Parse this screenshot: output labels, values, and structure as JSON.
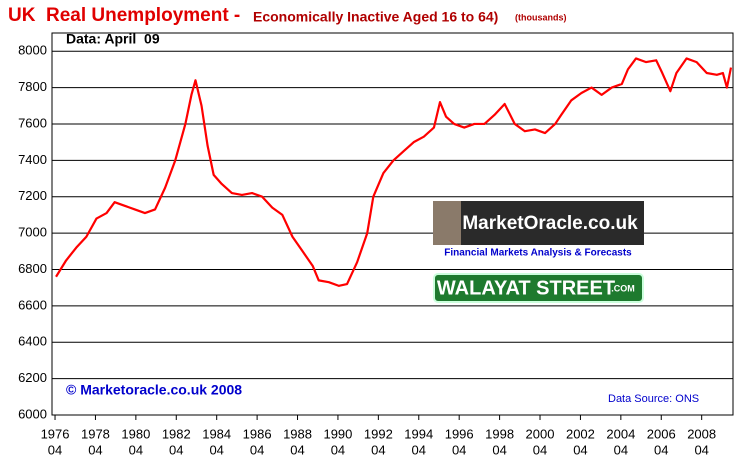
{
  "chart_data": {
    "type": "line",
    "title": "UK  Real Unemployment - ",
    "subtitle": "Economically Inactive Aged 16 to 64)",
    "units": "(thousands)",
    "annotations": [
      "Data: April  09",
      "© Marketoracle.co.uk 2008",
      "Data Source: ONS"
    ],
    "logos": [
      "MarketOracle.co.uk",
      "Financial Markets Analysis & Forecasts",
      "WALAYAT STREET",
      ".COM"
    ],
    "xlim": [
      1976.1,
      2009.8
    ],
    "ylim": [
      6000,
      8100
    ],
    "yticks": [
      6000,
      6200,
      6400,
      6600,
      6800,
      7000,
      7200,
      7400,
      7600,
      7800,
      8000
    ],
    "xticks": [
      {
        "value": 1976.25,
        "label": "1976"
      },
      {
        "value": 1978.25,
        "label": "1978"
      },
      {
        "value": 1980.25,
        "label": "1980"
      },
      {
        "value": 1982.25,
        "label": "1982"
      },
      {
        "value": 1984.25,
        "label": "1984"
      },
      {
        "value": 1986.25,
        "label": "1986"
      },
      {
        "value": 1988.25,
        "label": "1988"
      },
      {
        "value": 1990.25,
        "label": "1990"
      },
      {
        "value": 1992.25,
        "label": "1992"
      },
      {
        "value": 1994.25,
        "label": "1994"
      },
      {
        "value": 1996.25,
        "label": "1996"
      },
      {
        "value": 1998.25,
        "label": "1998"
      },
      {
        "value": 2000.25,
        "label": "2000"
      },
      {
        "value": 2002.25,
        "label": "2002"
      },
      {
        "value": 2004.25,
        "label": "2004"
      },
      {
        "value": 2006.25,
        "label": "2006"
      },
      {
        "value": 2008.25,
        "label": "2008"
      }
    ],
    "xtick_sublabels": [
      "04",
      "04",
      "04",
      "04",
      "04",
      "04",
      "04",
      "04",
      "04",
      "04",
      "04",
      "04",
      "04",
      "04",
      "04",
      "04",
      "04"
    ],
    "grid": true,
    "series": [
      {
        "name": "Economically Inactive",
        "color": "#ff0000",
        "x": [
          1976.3,
          1976.8,
          1977.3,
          1977.8,
          1978.3,
          1978.8,
          1979.2,
          1979.7,
          1980.2,
          1980.7,
          1981.2,
          1981.7,
          1982.2,
          1982.7,
          1983.0,
          1983.2,
          1983.5,
          1983.8,
          1984.1,
          1984.5,
          1985.0,
          1985.5,
          1986.0,
          1986.5,
          1987.0,
          1987.5,
          1988.0,
          1988.5,
          1989.0,
          1989.3,
          1989.8,
          1990.3,
          1990.7,
          1991.2,
          1991.7,
          1992.0,
          1992.5,
          1993.0,
          1993.5,
          1994.0,
          1994.5,
          1995.0,
          1995.3,
          1995.6,
          1996.0,
          1996.5,
          1997.0,
          1997.5,
          1998.0,
          1998.5,
          1999.0,
          1999.5,
          2000.0,
          2000.5,
          2001.0,
          2001.3,
          2001.8,
          2002.3,
          2002.8,
          2003.3,
          2003.8,
          2004.3,
          2004.6,
          2005.0,
          2005.5,
          2006.0,
          2006.3,
          2006.7,
          2007.0,
          2007.5,
          2008.0,
          2008.5,
          2009.0,
          2009.3,
          2009.5,
          2009.7
        ],
        "values": [
          6760,
          6850,
          6920,
          6980,
          7080,
          7110,
          7170,
          7150,
          7130,
          7110,
          7130,
          7250,
          7400,
          7600,
          7760,
          7840,
          7700,
          7480,
          7320,
          7270,
          7220,
          7210,
          7220,
          7200,
          7140,
          7100,
          6980,
          6900,
          6820,
          6740,
          6730,
          6710,
          6720,
          6840,
          7000,
          7200,
          7330,
          7400,
          7450,
          7500,
          7530,
          7580,
          7720,
          7640,
          7600,
          7580,
          7600,
          7600,
          7650,
          7710,
          7600,
          7560,
          7570,
          7550,
          7600,
          7650,
          7730,
          7770,
          7800,
          7760,
          7800,
          7820,
          7900,
          7960,
          7940,
          7950,
          7880,
          7780,
          7880,
          7960,
          7940,
          7880,
          7870,
          7880,
          7800,
          7910
        ]
      }
    ]
  }
}
